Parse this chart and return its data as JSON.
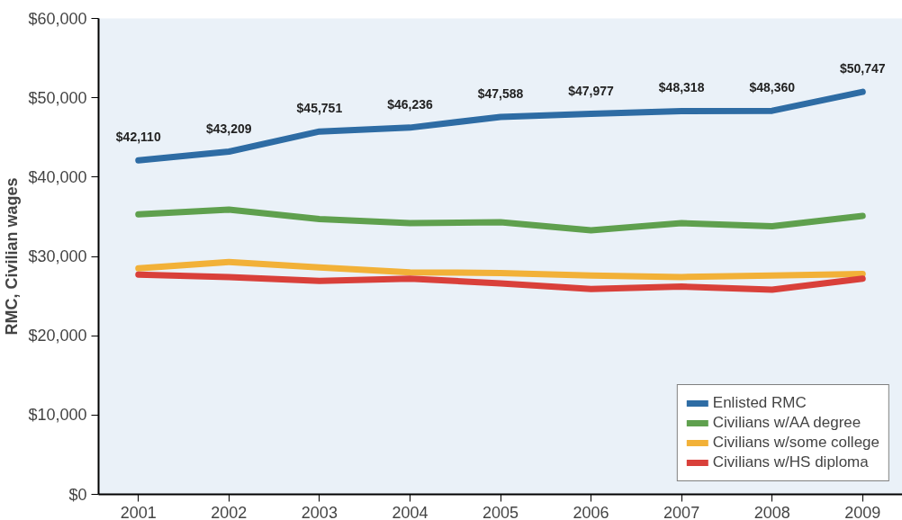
{
  "chart_data": {
    "type": "line",
    "ylabel": "RMC, Civilian wages",
    "categories": [
      "2001",
      "2002",
      "2003",
      "2004",
      "2005",
      "2006",
      "2007",
      "2008",
      "2009"
    ],
    "ylim": [
      0,
      60000
    ],
    "yticks": [
      {
        "value": 0,
        "label": "$0"
      },
      {
        "value": 10000,
        "label": "$10,000"
      },
      {
        "value": 20000,
        "label": "$20,000"
      },
      {
        "value": 30000,
        "label": "$30,000"
      },
      {
        "value": 40000,
        "label": "$40,000"
      },
      {
        "value": 50000,
        "label": "$50,000"
      },
      {
        "value": 60000,
        "label": "$60,000"
      }
    ],
    "grid": false,
    "legend": "bottom right",
    "marker": "none",
    "line_style": "solid",
    "series": [
      {
        "name": "Enlisted RMC",
        "color": "#2e6ca4",
        "values": [
          42110,
          43209,
          45751,
          46236,
          47588,
          47977,
          48318,
          48360,
          50747
        ],
        "value_labels": [
          "$42,110",
          "$43,209",
          "$45,751",
          "$46,236",
          "$47,588",
          "$47,977",
          "$48,318",
          "$48,360",
          "$50,747"
        ]
      },
      {
        "name": "Civilians w/AA degree",
        "color": "#5fa04e",
        "values": [
          35300,
          35900,
          34700,
          34200,
          34300,
          33300,
          34200,
          33800,
          35100
        ]
      },
      {
        "name": "Civilians w/some college",
        "color": "#f2b138",
        "values": [
          28500,
          29300,
          28600,
          28000,
          27900,
          27600,
          27400,
          27600,
          27800
        ]
      },
      {
        "name": "Civilians w/HS diploma",
        "color": "#d9403a",
        "values": [
          27700,
          27400,
          26900,
          27200,
          26600,
          25900,
          26200,
          25800,
          27200
        ]
      }
    ]
  }
}
